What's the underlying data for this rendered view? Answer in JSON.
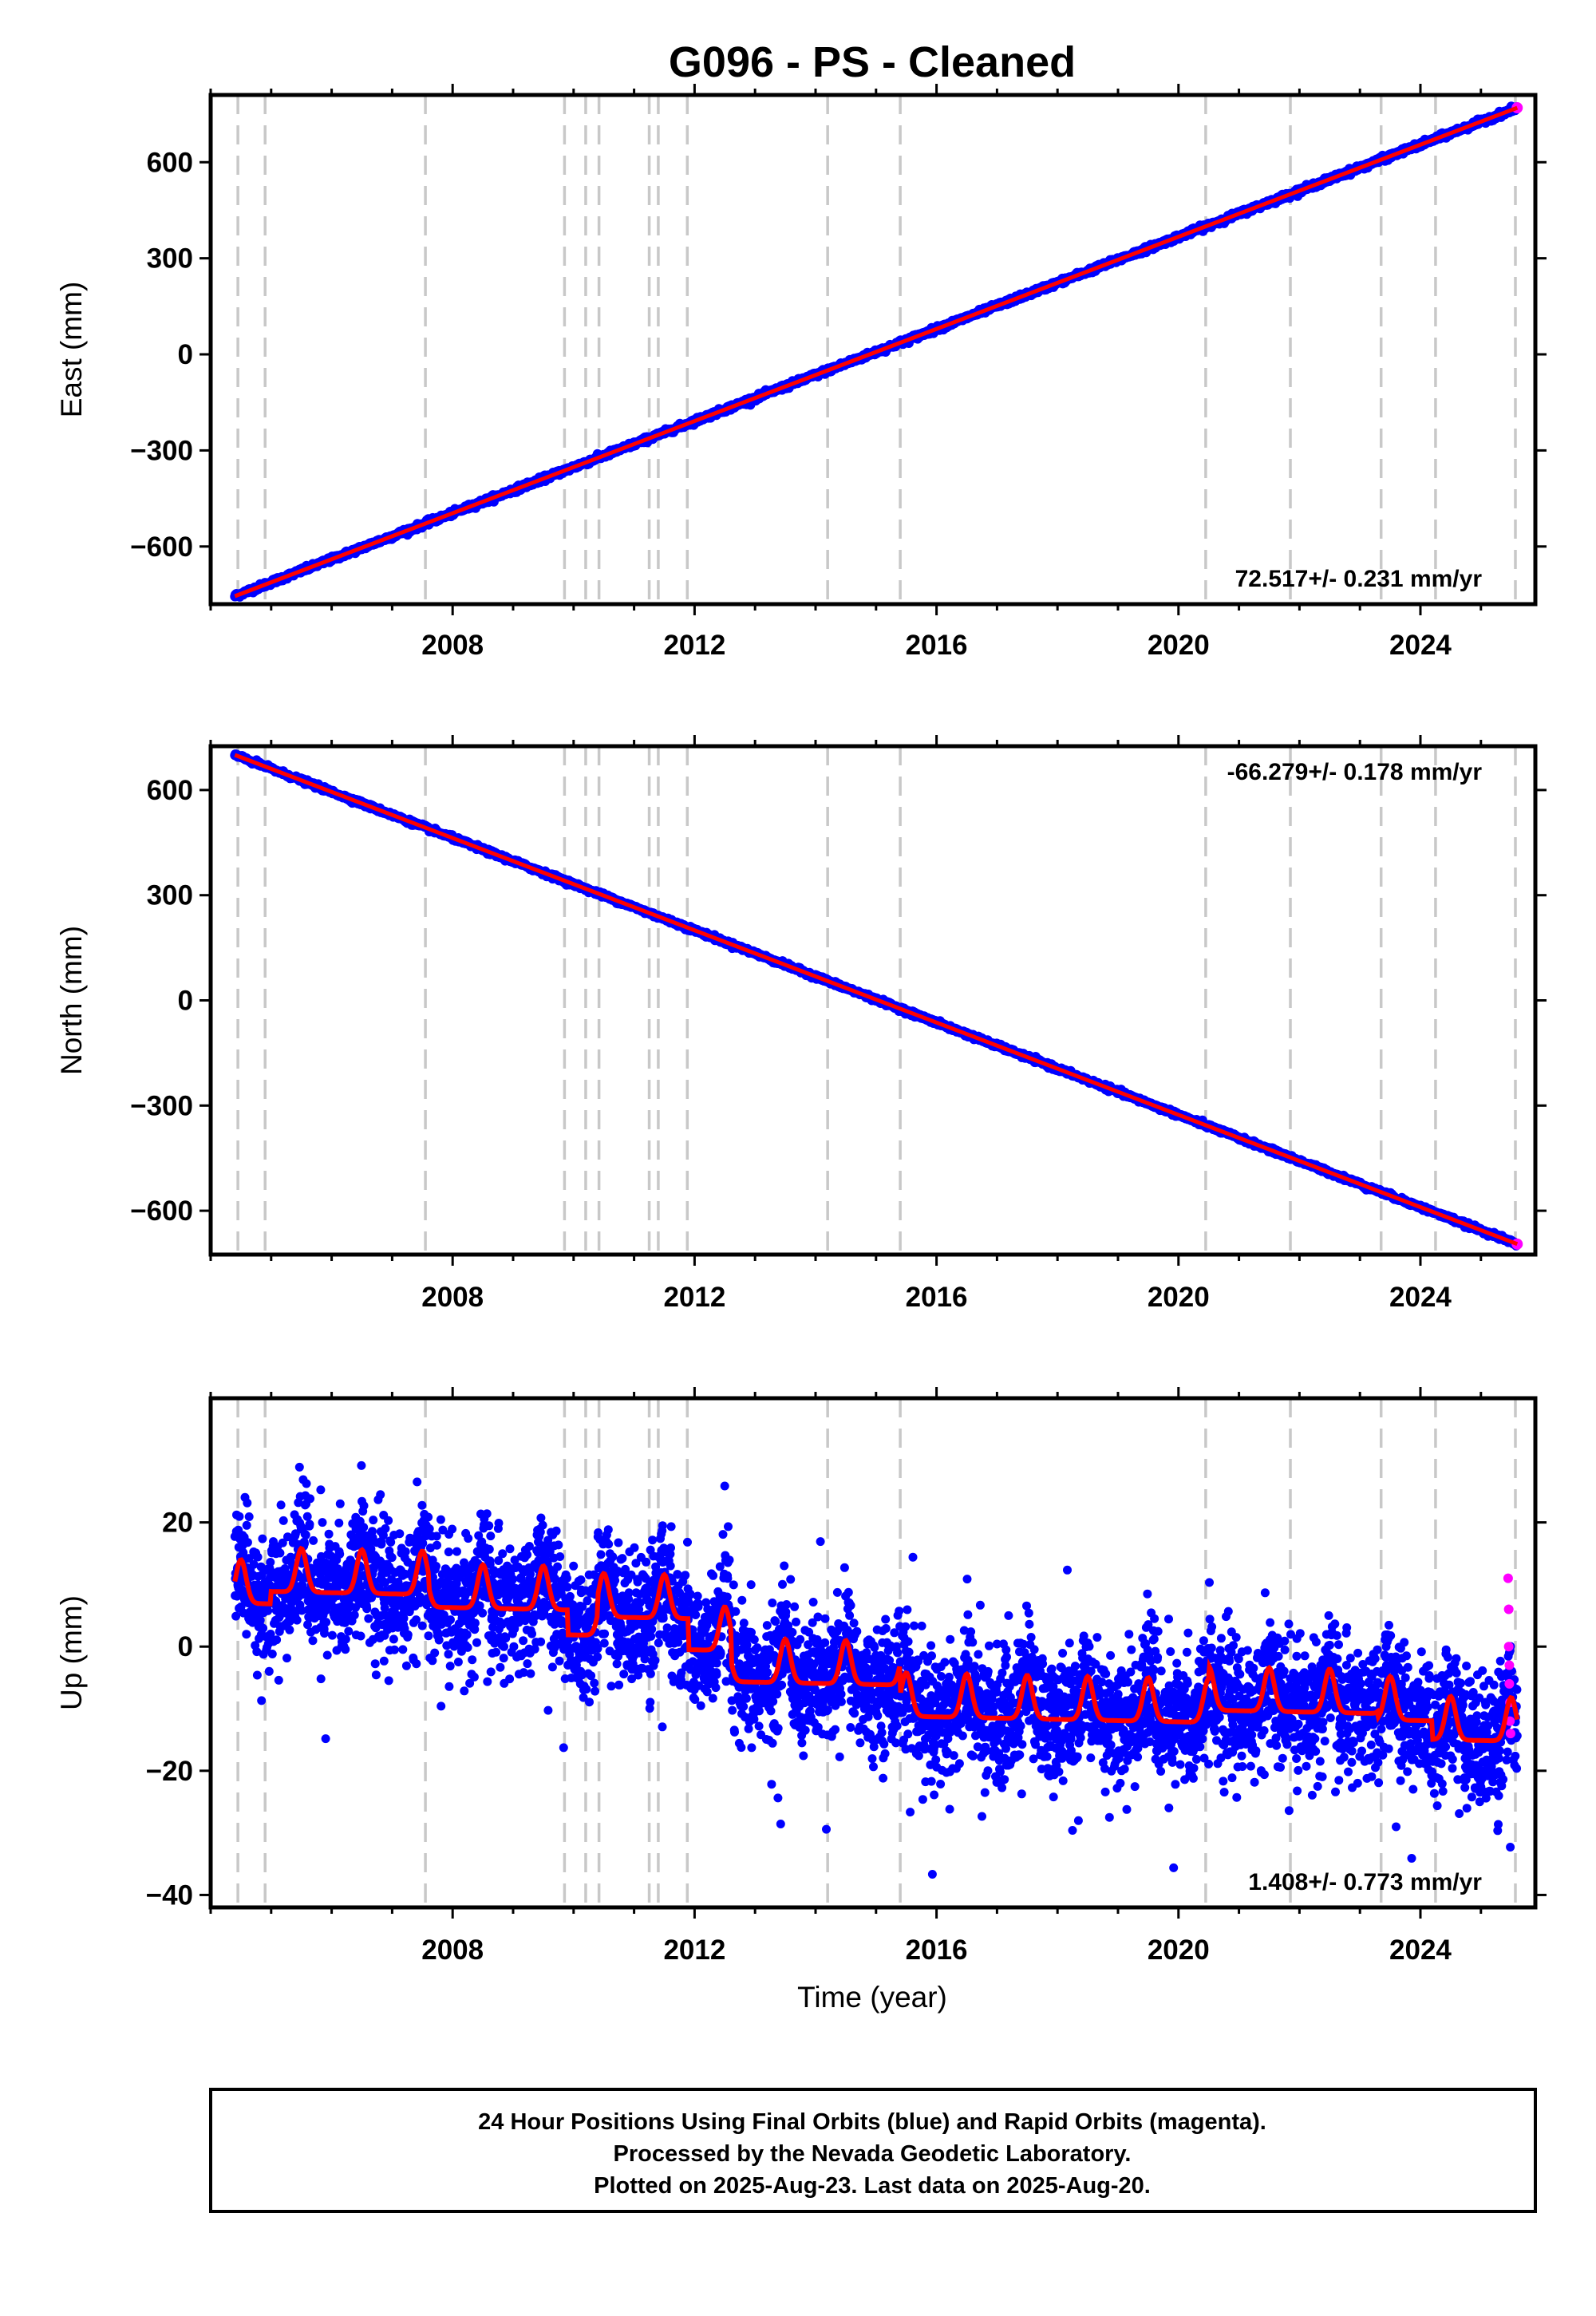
{
  "title": "G096  - PS - Cleaned",
  "footer": {
    "lines": [
      "24 Hour Positions Using Final Orbits (blue) and Rapid Orbits (magenta).",
      "Processed by the Nevada Geodetic Laboratory.",
      "Plotted on 2025-Aug-23. Last data on 2025-Aug-20."
    ]
  },
  "x_axis": {
    "label": "Time (year)",
    "range": [
      2004.0,
      2025.9
    ],
    "ticks": [
      2008,
      2012,
      2016,
      2020,
      2024
    ],
    "tick_labels": [
      "2008",
      "2012",
      "2016",
      "2020",
      "2024"
    ]
  },
  "colors": {
    "final_orbits": "#0000ff",
    "rapid_orbits": "#ff00ff",
    "model_fit": "#ff0000",
    "event_lines": "#c8c8c8"
  },
  "chart_data": [
    {
      "type": "scatter",
      "component": "East",
      "ylabel": "East (mm)",
      "ylim": [
        -780,
        810
      ],
      "yticks": [
        -600,
        -300,
        0,
        300,
        600
      ],
      "ytick_labels": [
        "−600",
        "−300",
        "0",
        "300",
        "600"
      ],
      "rate_label": "72.517+/- 0.231 mm/yr",
      "rate_position": "bottom-right",
      "start_year": 2004.4,
      "end_year": 2025.6,
      "start_value": -755,
      "end_value": 770,
      "noise_mm": 4
    },
    {
      "type": "scatter",
      "component": "North",
      "ylabel": "North (mm)",
      "ylim": [
        -725,
        725
      ],
      "yticks": [
        -600,
        -300,
        0,
        300,
        600
      ],
      "ytick_labels": [
        "−600",
        "−300",
        "0",
        "300",
        "600"
      ],
      "rate_label": "-66.279+/- 0.178 mm/yr",
      "rate_position": "top-right",
      "start_year": 2004.4,
      "end_year": 2025.6,
      "start_value": 700,
      "end_value": -695,
      "noise_mm": 3
    },
    {
      "type": "scatter",
      "component": "Up",
      "ylabel": "Up (mm)",
      "ylim": [
        -42,
        40
      ],
      "yticks": [
        -40,
        -20,
        0,
        20
      ],
      "ytick_labels": [
        "−40",
        "−20",
        "0",
        "20"
      ],
      "rate_label": "1.408+/- 0.773 mm/yr",
      "rate_position": "bottom-right",
      "start_year": 2004.4,
      "end_year": 2025.6,
      "noise_mm": 5,
      "offset_steps": [
        {
          "year": 2005.0,
          "level": 12
        },
        {
          "year": 2007.6,
          "level": 10
        },
        {
          "year": 2009.9,
          "level": 6
        },
        {
          "year": 2010.4,
          "level": 9
        },
        {
          "year": 2011.9,
          "level": 4
        },
        {
          "year": 2012.6,
          "level": -1
        },
        {
          "year": 2015.4,
          "level": -6
        },
        {
          "year": 2020.5,
          "level": -4
        },
        {
          "year": 2023.3,
          "level": -5
        },
        {
          "year": 2024.2,
          "level": -8
        }
      ],
      "seasonal_amplitude_mm": 5,
      "rapid_orbit_points": [
        {
          "x": 2025.45,
          "y": 11
        },
        {
          "x": 2025.46,
          "y": 6
        },
        {
          "x": 2025.46,
          "y": 0
        },
        {
          "x": 2025.47,
          "y": -3
        },
        {
          "x": 2025.47,
          "y": -6
        },
        {
          "x": 2025.48,
          "y": -9
        },
        {
          "x": 2025.48,
          "y": -12
        },
        {
          "x": 2025.49,
          "y": -14
        }
      ]
    }
  ],
  "event_lines": [
    2004.45,
    2004.9,
    2007.55,
    2009.85,
    2010.2,
    2010.42,
    2011.25,
    2011.4,
    2011.88,
    2014.2,
    2015.4,
    2020.45,
    2021.85,
    2023.35,
    2024.25,
    2025.57
  ]
}
